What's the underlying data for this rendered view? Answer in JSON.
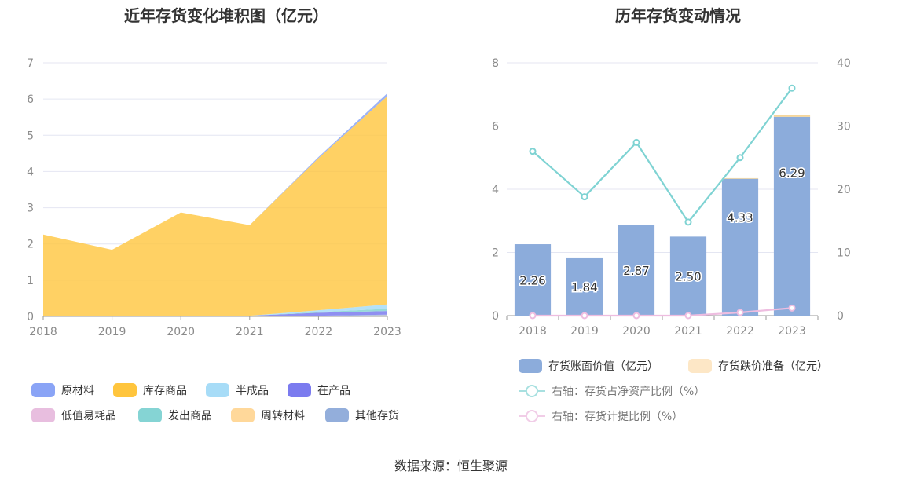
{
  "left_title": "近年存货变化堆积图（亿元）",
  "right_title": "历年存货变动情况",
  "source": "数据来源：恒生聚源",
  "chart_data": [
    {
      "type": "area",
      "title": "近年存货变化堆积图（亿元）",
      "x": [
        "2018",
        "2019",
        "2020",
        "2021",
        "2022",
        "2023"
      ],
      "ylim": [
        0,
        7
      ],
      "yticks": [
        0,
        1,
        2,
        3,
        4,
        5,
        6,
        7
      ],
      "grid": true,
      "legend_position": "bottom",
      "stacked": true,
      "series": [
        {
          "name": "原材料",
          "color": "#8aa4f6",
          "values": [
            0,
            0,
            0,
            0,
            0.03,
            0.08
          ]
        },
        {
          "name": "库存商品",
          "color": "#ffc53d",
          "values": [
            2.26,
            1.84,
            2.87,
            2.5,
            4.2,
            5.75
          ]
        },
        {
          "name": "半成品",
          "color": "#a7dcf7",
          "values": [
            0,
            0,
            0,
            0,
            0.05,
            0.12
          ]
        },
        {
          "name": "在产品",
          "color": "#7b7bef",
          "values": [
            0,
            0,
            0,
            0.02,
            0.08,
            0.1
          ]
        },
        {
          "name": "低值易耗品",
          "color": "#e8bedf",
          "values": [
            0,
            0,
            0,
            0,
            0,
            0
          ]
        },
        {
          "name": "发出商品",
          "color": "#85d4d4",
          "values": [
            0,
            0,
            0,
            0,
            0.02,
            0.06
          ]
        },
        {
          "name": "周转材料",
          "color": "#ffd89a",
          "values": [
            0,
            0,
            0,
            0,
            0.01,
            0.03
          ]
        },
        {
          "name": "其他存货",
          "color": "#93aedb",
          "values": [
            0,
            0,
            0,
            0,
            0.01,
            0.02
          ]
        }
      ]
    },
    {
      "type": "bar",
      "title": "历年存货变动情况",
      "categories": [
        "2018",
        "2019",
        "2020",
        "2021",
        "2022",
        "2023"
      ],
      "ylim_left": [
        0,
        8
      ],
      "yticks_left": [
        0,
        2,
        4,
        6,
        8
      ],
      "ylim_right": [
        0,
        40
      ],
      "yticks_right": [
        0,
        10,
        20,
        30,
        40
      ],
      "grid": true,
      "legend_position": "bottom",
      "series": [
        {
          "name": "存货账面价值（亿元）",
          "axis": "left",
          "kind": "bar",
          "color": "#8cacdb",
          "values": [
            2.26,
            1.84,
            2.87,
            2.5,
            4.33,
            6.29
          ],
          "labels": [
            "2.26",
            "1.84",
            "2.87",
            "2.50",
            "4.33",
            "6.29"
          ]
        },
        {
          "name": "存货跌价准备（亿元）",
          "axis": "left",
          "kind": "bar",
          "color": "#fde7c6",
          "values": [
            0,
            0,
            0,
            0,
            0.02,
            0.06
          ]
        },
        {
          "name": "右轴：存货占净资产比例（%）",
          "axis": "right",
          "kind": "line",
          "color": "#7fd3d3",
          "values": [
            26.0,
            18.8,
            27.4,
            14.8,
            25.0,
            36.0
          ]
        },
        {
          "name": "右轴：存货计提比例（%）",
          "axis": "right",
          "kind": "line",
          "color": "#eebde0",
          "values": [
            0,
            0,
            0,
            0,
            0.5,
            1.2
          ]
        }
      ]
    }
  ]
}
